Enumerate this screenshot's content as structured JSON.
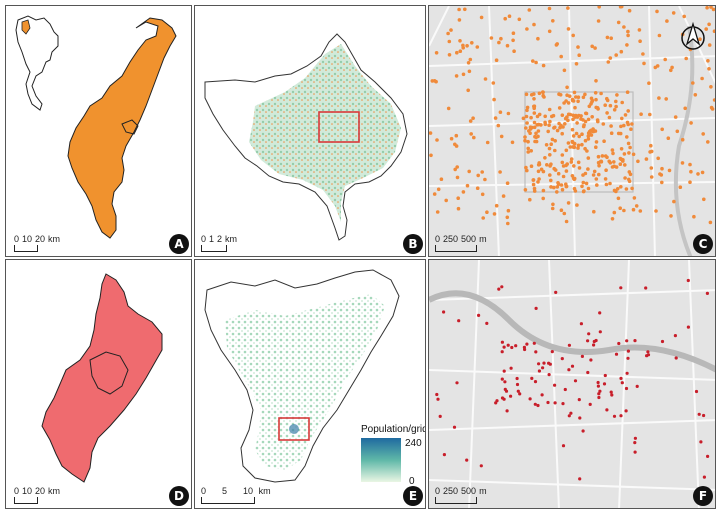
{
  "panels": [
    {
      "label": "A",
      "scale": {
        "ticks": [
          "0",
          "10",
          "20"
        ],
        "unit": "km"
      }
    },
    {
      "label": "B",
      "scale": {
        "ticks": [
          "0",
          "1",
          "2"
        ],
        "unit": "km"
      }
    },
    {
      "label": "C",
      "scale": {
        "ticks": [
          "0",
          "250",
          "500"
        ],
        "unit": "m"
      }
    },
    {
      "label": "D",
      "scale": {
        "ticks": [
          "0",
          "10",
          "20"
        ],
        "unit": "km"
      }
    },
    {
      "label": "E",
      "scale": {
        "ticks": [
          "0",
          "5",
          "10"
        ],
        "unit": "km"
      }
    },
    {
      "label": "F",
      "scale": {
        "ticks": [
          "0",
          "250",
          "500"
        ],
        "unit": "m"
      }
    }
  ],
  "legend": {
    "title": "Population/grid",
    "max": "240",
    "min": "0"
  },
  "colors": {
    "province_orange": "#f0922e",
    "province_red": "#ef6b6f",
    "density_green": "#bfe5cf",
    "highlight_box": "#d83a3a",
    "point_orange": "#f08a3a",
    "point_red": "#c81e2a",
    "street_bg": "#e4e4e4",
    "river": "#b8b8b8"
  },
  "icons": {
    "north_arrow": "north-arrow-icon"
  }
}
